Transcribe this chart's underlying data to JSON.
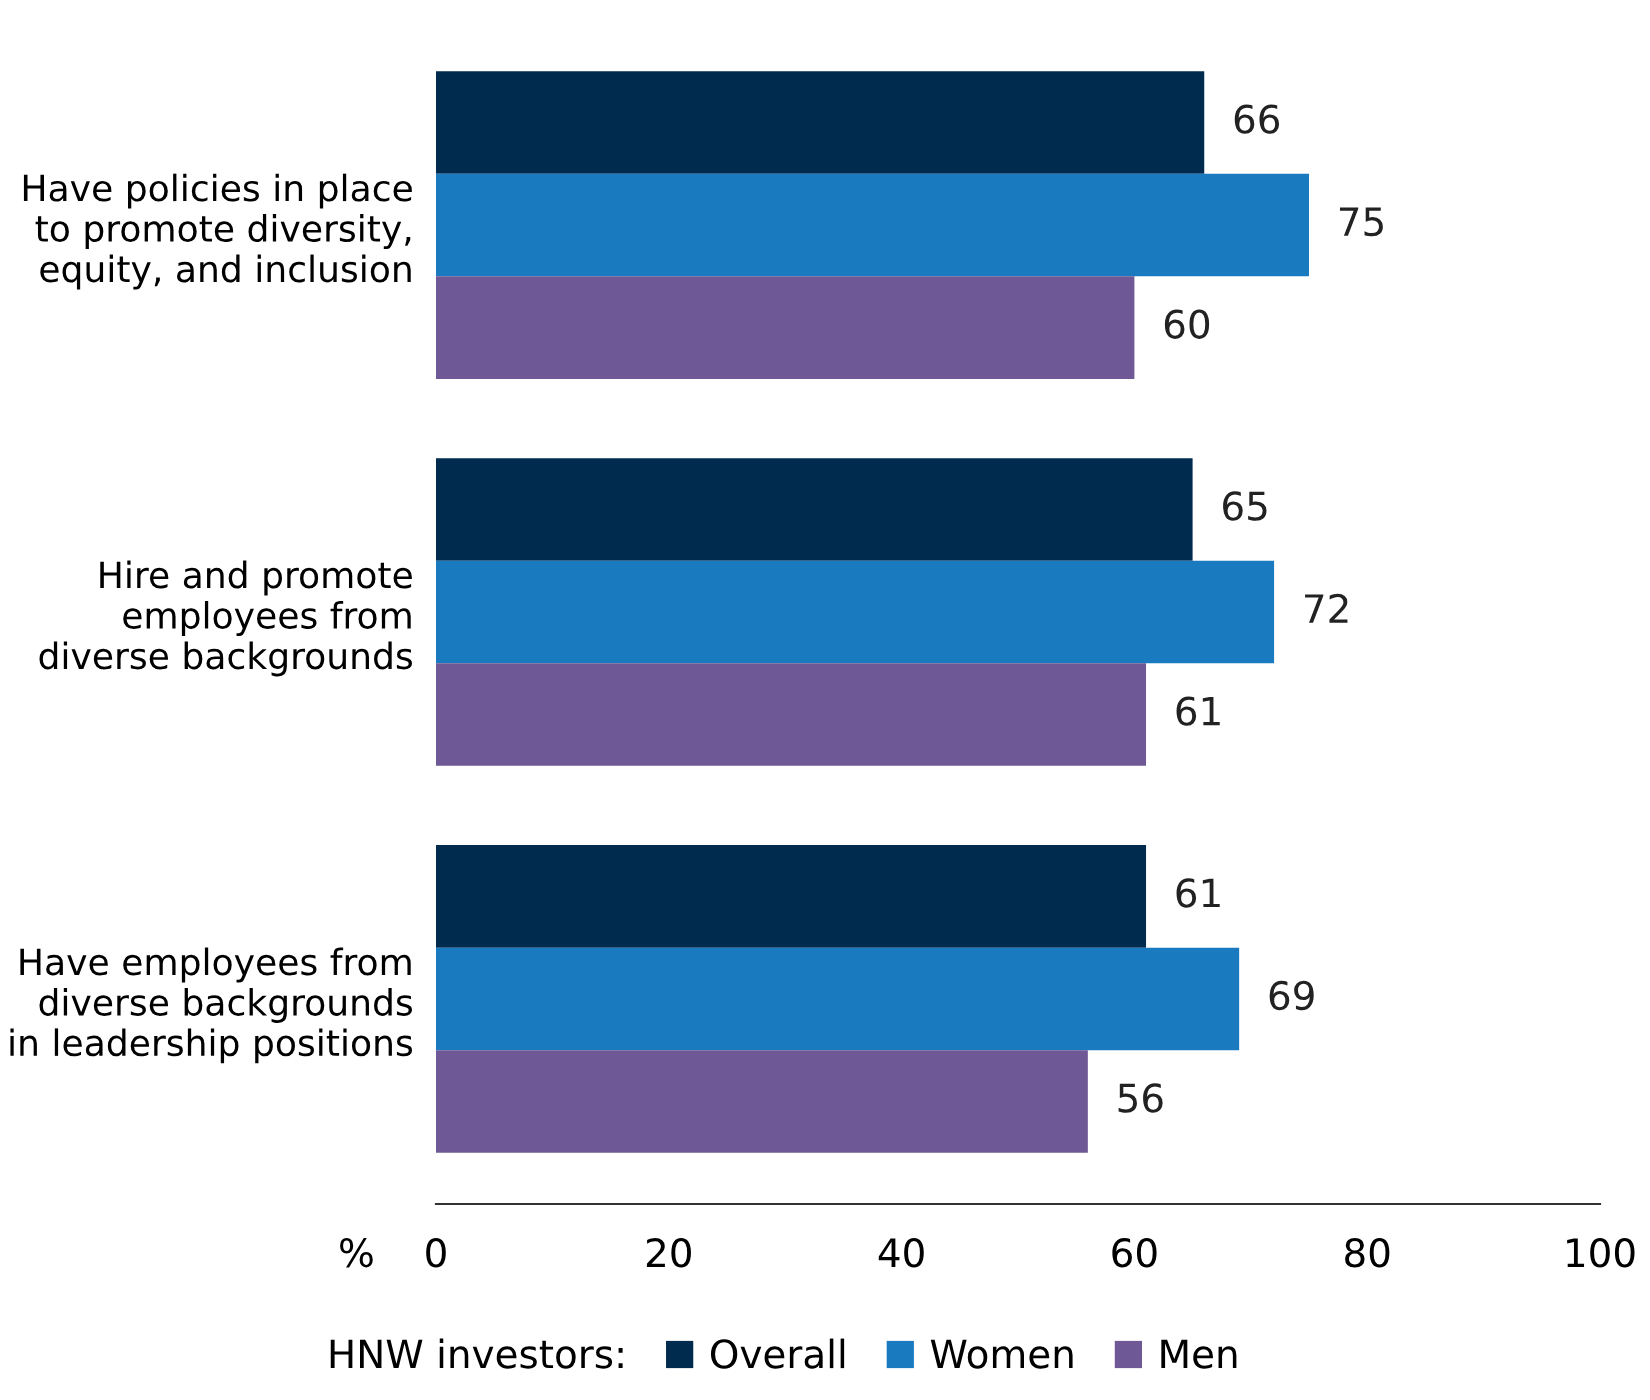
{
  "chart_data": {
    "type": "bar",
    "orientation": "horizontal",
    "categories": [
      "Have policies in place\nto promote diversity,\nequity, and inclusion",
      "Hire and promote\nemployees from\ndiverse backgrounds",
      "Have employees from\ndiverse backgrounds\nin leadership positions"
    ],
    "series": [
      {
        "name": "Overall",
        "color": "#002a4e",
        "values": [
          66,
          65,
          61
        ]
      },
      {
        "name": "Women",
        "color": "#1a7abf",
        "values": [
          75,
          72,
          69
        ]
      },
      {
        "name": "Men",
        "color": "#6e5895",
        "values": [
          60,
          61,
          56
        ]
      }
    ],
    "xlabel": "%",
    "xlim": [
      0,
      100
    ],
    "xticks": [
      0,
      20,
      40,
      60,
      80,
      100
    ],
    "data_labels": true,
    "legend": "bottom",
    "legend_title": "HNW investors:",
    "grid": false
  }
}
